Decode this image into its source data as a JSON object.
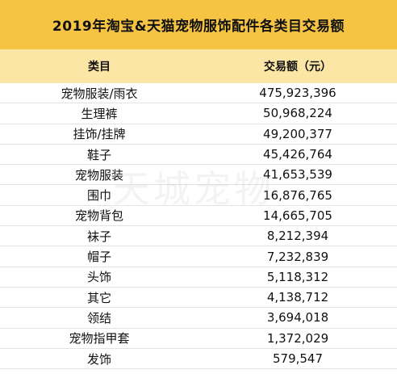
{
  "chart_data": {
    "type": "table",
    "title": "2019年淘宝&天猫宠物服饰配件各类目交易额",
    "columns": [
      "类目",
      "交易额（元）"
    ],
    "categories": [
      "宠物服装/雨衣",
      "生理裤",
      "挂饰/挂牌",
      "鞋子",
      "宠物服装",
      "围巾",
      "宠物背包",
      "袜子",
      "帽子",
      "头饰",
      "其它",
      "领结",
      "宠物指甲套",
      "发饰"
    ],
    "values": [
      475923396,
      50968224,
      49200377,
      45426764,
      41653539,
      16876765,
      14665705,
      8212394,
      7232839,
      5118312,
      4138712,
      3694018,
      1372029,
      579547
    ],
    "value_labels": [
      "475,923,396",
      "50,968,224",
      "49,200,377",
      "45,426,764",
      "41,653,539",
      "16,876,765",
      "14,665,705",
      "8,212,394",
      "7,232,839",
      "5,118,312",
      "4,138,712",
      "3,694,018",
      "1,372,029",
      "579,547"
    ],
    "watermark": "天城宠物",
    "colors": {
      "title_bg": "#f6c443",
      "header_bg": "#fbe6a6"
    }
  }
}
